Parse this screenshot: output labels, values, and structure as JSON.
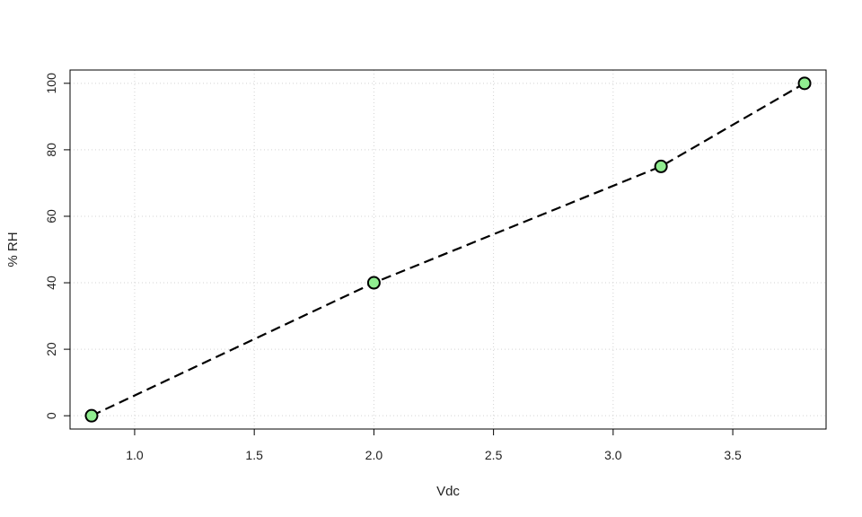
{
  "chart_data": {
    "type": "line",
    "title": "",
    "xlabel": "Vdc",
    "ylabel": "% RH",
    "xlim": [
      0.73,
      3.89
    ],
    "ylim": [
      -4,
      104
    ],
    "xticks": [
      1.0,
      1.5,
      2.0,
      2.5,
      3.0,
      3.5
    ],
    "yticks": [
      0,
      20,
      40,
      60,
      80,
      100
    ],
    "xtick_labels": [
      "1.0",
      "1.5",
      "2.0",
      "2.5",
      "3.0",
      "3.5"
    ],
    "ytick_labels": [
      "0",
      "20",
      "40",
      "60",
      "80",
      "100"
    ],
    "grid": true,
    "line_style": "dashed",
    "colors": {
      "line": "#000000",
      "marker_fill": "#90ee90",
      "marker_edge": "#000000",
      "grid": "#d3d3d3"
    },
    "series": [
      {
        "x": [
          0.82,
          2.0,
          3.2,
          3.8
        ],
        "y": [
          0,
          40,
          75,
          100
        ]
      }
    ]
  }
}
